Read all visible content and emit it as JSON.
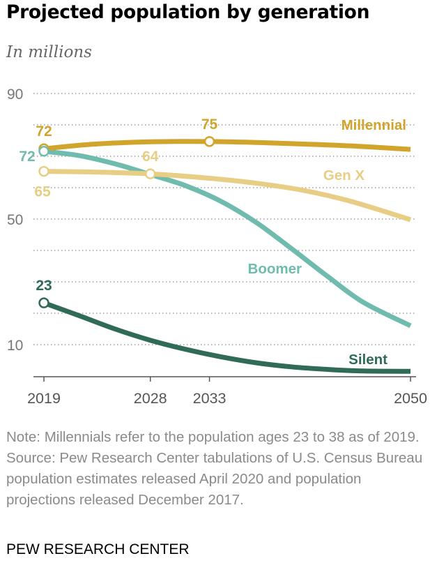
{
  "title": "Projected population by generation",
  "subtitle": "In millions",
  "note": "Note: Millennials refer to the population ages 23 to 38 as of 2019.",
  "source": "Source: Pew Research Center tabulations of U.S. Census Bureau population estimates released April 2020 and population projections released December 2017.",
  "footer": "PEW RESEARCH CENTER",
  "chart_data": {
    "type": "line",
    "ylim": [
      0,
      90
    ],
    "xlim": [
      2019,
      2050
    ],
    "yticks": [
      10,
      50,
      90
    ],
    "xticks": [
      2019,
      2028,
      2033,
      2050
    ],
    "grid": true,
    "series": [
      {
        "name": "Millennial",
        "color": "#d1a42b",
        "x": [
          2019,
          2023,
          2028,
          2033,
          2037,
          2041,
          2045,
          2050
        ],
        "y": [
          72.4,
          73.8,
          74.6,
          74.7,
          74.4,
          73.9,
          73.3,
          72.2
        ],
        "point_labels": [
          {
            "x": 2019,
            "text": "72",
            "pos": "above"
          },
          {
            "x": 2033,
            "text": "75",
            "pos": "above"
          }
        ]
      },
      {
        "name": "Gen X",
        "color": "#e8cd85",
        "x": [
          2019,
          2023,
          2028,
          2033,
          2037,
          2041,
          2045,
          2050
        ],
        "y": [
          65.2,
          65.0,
          64.4,
          63.0,
          61.4,
          59.1,
          55.6,
          49.8
        ],
        "point_labels": [
          {
            "x": 2019,
            "text": "65",
            "pos": "below"
          },
          {
            "x": 2028,
            "text": "64",
            "pos": "above"
          }
        ]
      },
      {
        "name": "Boomer",
        "color": "#6fbcae",
        "x": [
          2019,
          2022,
          2025,
          2028,
          2031,
          2034,
          2037,
          2040,
          2043,
          2046,
          2050
        ],
        "y": [
          71.6,
          70.2,
          67.6,
          64.2,
          60.6,
          55.6,
          48.8,
          40.4,
          31.7,
          23.5,
          16.0
        ],
        "point_labels": [
          {
            "x": 2019,
            "text": "72",
            "pos": "left"
          }
        ]
      },
      {
        "name": "Silent",
        "color": "#2f6b57",
        "x": [
          2019,
          2022,
          2025,
          2028,
          2031,
          2034,
          2037,
          2040,
          2043,
          2046,
          2050
        ],
        "y": [
          23.3,
          19.2,
          15.0,
          11.4,
          8.5,
          6.1,
          4.2,
          2.9,
          2.1,
          1.6,
          1.5
        ],
        "point_labels": [
          {
            "x": 2019,
            "text": "23",
            "pos": "above"
          }
        ]
      }
    ]
  }
}
